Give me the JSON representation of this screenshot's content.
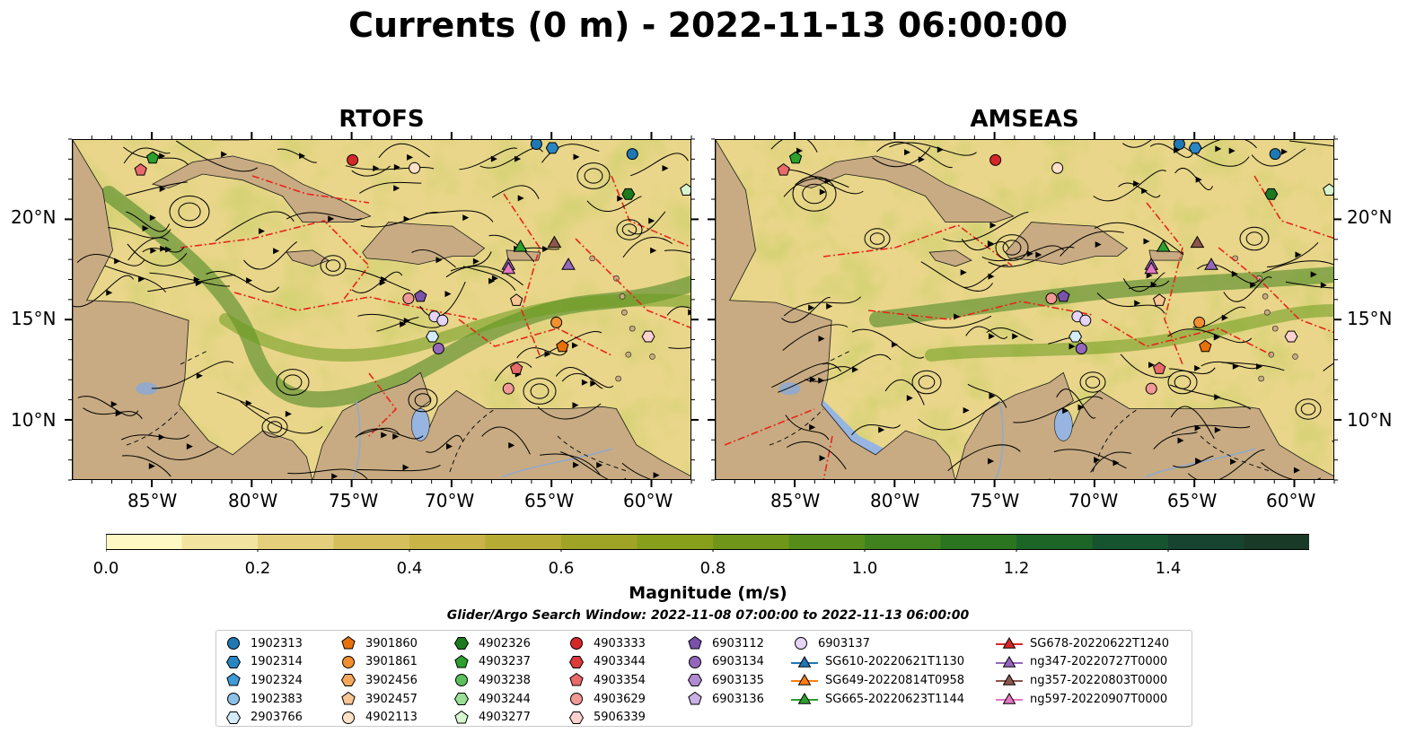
{
  "title": "Currents (0 m) - 2022-11-13 06:00:00",
  "panels": [
    {
      "title": "RTOFS"
    },
    {
      "title": "AMSEAS"
    }
  ],
  "lon_labels": [
    "85°W",
    "80°W",
    "75°W",
    "70°W",
    "65°W",
    "60°W"
  ],
  "lat_labels": [
    "20°N",
    "15°N",
    "10°N"
  ],
  "colorbar": {
    "label": "Magnitude (m/s)",
    "ticks": [
      "0.0",
      "0.2",
      "0.4",
      "0.6",
      "0.8",
      "1.0",
      "1.2",
      "1.4"
    ],
    "min": 0.0,
    "max": 1.6,
    "extend": "max",
    "colors": [
      "#fdf8c4",
      "#f2e4a0",
      "#e4cf7c",
      "#d5be5c",
      "#c9b447",
      "#b6ab35",
      "#9fa427",
      "#889f1c",
      "#6f9618",
      "#568d1a",
      "#3f821e",
      "#2c7520",
      "#1d6527",
      "#165430",
      "#164430",
      "#1a3a28",
      "#1c2b1c"
    ]
  },
  "search_window": "Glider/Argo Search Window: 2022-11-08 07:00:00 to 2022-11-13 06:00:00",
  "colors": {
    "land": "#c8ab82",
    "water_masked": "#97b5e0",
    "eez_line": "#e8241c",
    "river": "#8fa9cf"
  },
  "legend": [
    [
      {
        "label": "1902313",
        "marker": "circle",
        "color": "#1f77b4"
      },
      {
        "label": "1902314",
        "marker": "hexagon",
        "color": "#2a86c3"
      },
      {
        "label": "1902324",
        "marker": "pentagon",
        "color": "#3f9ad8"
      },
      {
        "label": "1902383",
        "marker": "circle",
        "color": "#8cc1e8"
      },
      {
        "label": "2903766",
        "marker": "hexagon",
        "color": "#d4ebfa"
      }
    ],
    [
      {
        "label": "3901860",
        "marker": "pentagon",
        "color": "#e8700a"
      },
      {
        "label": "3901861",
        "marker": "circle",
        "color": "#f28f30"
      },
      {
        "label": "3902456",
        "marker": "hexagon",
        "color": "#f5a85c"
      },
      {
        "label": "3902457",
        "marker": "pentagon",
        "color": "#f8c594"
      },
      {
        "label": "4902113",
        "marker": "circle",
        "color": "#fde2c8"
      }
    ],
    [
      {
        "label": "4902326",
        "marker": "hexagon",
        "color": "#1e7a1e"
      },
      {
        "label": "4903237",
        "marker": "pentagon",
        "color": "#2ca02c"
      },
      {
        "label": "4903238",
        "marker": "circle",
        "color": "#5cbf5c"
      },
      {
        "label": "4903244",
        "marker": "hexagon",
        "color": "#9adf96"
      },
      {
        "label": "4903277",
        "marker": "pentagon",
        "color": "#d7f5cf"
      }
    ],
    [
      {
        "label": "4903333",
        "marker": "circle",
        "color": "#d62728"
      },
      {
        "label": "4903344",
        "marker": "hexagon",
        "color": "#dc3b3b"
      },
      {
        "label": "4903354",
        "marker": "pentagon",
        "color": "#e86a6a"
      },
      {
        "label": "4903629",
        "marker": "circle",
        "color": "#f29896"
      },
      {
        "label": "5906339",
        "marker": "hexagon",
        "color": "#fbd2d0"
      }
    ],
    [
      {
        "label": "6903112",
        "marker": "pentagon",
        "color": "#7b52ab"
      },
      {
        "label": "6903134",
        "marker": "circle",
        "color": "#9467bd"
      },
      {
        "label": "6903135",
        "marker": "hexagon",
        "color": "#b08ad2"
      },
      {
        "label": "6903136",
        "marker": "pentagon",
        "color": "#c9b0e6"
      }
    ],
    [
      {
        "label": "6903137",
        "marker": "circle",
        "color": "#e5d4f5"
      },
      {
        "label": "SG610-20220621T1130",
        "marker": "triangle-line",
        "color": "#1f77b4"
      },
      {
        "label": "SG649-20220814T0958",
        "marker": "triangle-line",
        "color": "#ff7f0e"
      },
      {
        "label": "SG665-20220623T1144",
        "marker": "triangle-line",
        "color": "#2ca02c"
      }
    ],
    [
      {
        "label": "SG678-20220622T1240",
        "marker": "triangle-line",
        "color": "#d62728"
      },
      {
        "label": "ng347-20220727T0000",
        "marker": "triangle-line",
        "color": "#9467bd"
      },
      {
        "label": "ng357-20220803T0000",
        "marker": "triangle-line",
        "color": "#8c564b"
      },
      {
        "label": "ng597-20220907T0000",
        "marker": "triangle-line",
        "color": "#e377c2"
      }
    ]
  ],
  "platforms": [
    {
      "lon": -65.8,
      "lat": 23.8,
      "marker": "circle",
      "color": "#1f77b4"
    },
    {
      "lon": -61.0,
      "lat": 23.3,
      "marker": "circle",
      "color": "#1f77b4"
    },
    {
      "lon": -65.0,
      "lat": 23.6,
      "marker": "hexagon",
      "color": "#2a86c3"
    },
    {
      "lon": -71.0,
      "lat": 14.2,
      "marker": "hexagon",
      "color": "#d4ebfa"
    },
    {
      "lon": -64.8,
      "lat": 14.9,
      "marker": "circle",
      "color": "#f28f30"
    },
    {
      "lon": -64.5,
      "lat": 13.7,
      "marker": "pentagon",
      "color": "#e8700a"
    },
    {
      "lon": -66.8,
      "lat": 16.0,
      "marker": "pentagon",
      "color": "#f8c594"
    },
    {
      "lon": -71.9,
      "lat": 22.6,
      "marker": "circle",
      "color": "#fde2c8"
    },
    {
      "lon": -85.0,
      "lat": 23.1,
      "marker": "pentagon",
      "color": "#2ca02c"
    },
    {
      "lon": -61.2,
      "lat": 21.3,
      "marker": "hexagon",
      "color": "#1e7a1e"
    },
    {
      "lon": -58.3,
      "lat": 21.5,
      "marker": "pentagon",
      "color": "#d7f5cf"
    },
    {
      "lon": -75.0,
      "lat": 23.0,
      "marker": "circle",
      "color": "#d62728"
    },
    {
      "lon": -85.6,
      "lat": 22.5,
      "marker": "pentagon",
      "color": "#e86a6a"
    },
    {
      "lon": -66.8,
      "lat": 12.6,
      "marker": "pentagon",
      "color": "#e86a6a"
    },
    {
      "lon": -67.2,
      "lat": 11.6,
      "marker": "circle",
      "color": "#f29896"
    },
    {
      "lon": -60.2,
      "lat": 14.2,
      "marker": "hexagon",
      "color": "#fbd2d0"
    },
    {
      "lon": -71.6,
      "lat": 16.2,
      "marker": "pentagon",
      "color": "#7b52ab"
    },
    {
      "lon": -70.7,
      "lat": 13.6,
      "marker": "circle",
      "color": "#9467bd"
    },
    {
      "lon": -72.2,
      "lat": 16.1,
      "marker": "circle",
      "color": "#f29896"
    },
    {
      "lon": -70.9,
      "lat": 15.2,
      "marker": "circle",
      "color": "#e5d4f5"
    },
    {
      "lon": -70.5,
      "lat": 15.0,
      "marker": "circle",
      "color": "#e5d4f5"
    },
    {
      "lon": -66.6,
      "lat": 18.7,
      "marker": "triangle",
      "color": "#2ca02c"
    },
    {
      "lon": -64.9,
      "lat": 18.9,
      "marker": "triangle",
      "color": "#8c564b"
    },
    {
      "lon": -64.2,
      "lat": 17.8,
      "marker": "triangle",
      "color": "#9467bd"
    },
    {
      "lon": -67.2,
      "lat": 17.8,
      "marker": "triangle",
      "color": "#9467bd"
    },
    {
      "lon": -67.2,
      "lat": 17.6,
      "marker": "triangle",
      "color": "#e377c2"
    }
  ]
}
